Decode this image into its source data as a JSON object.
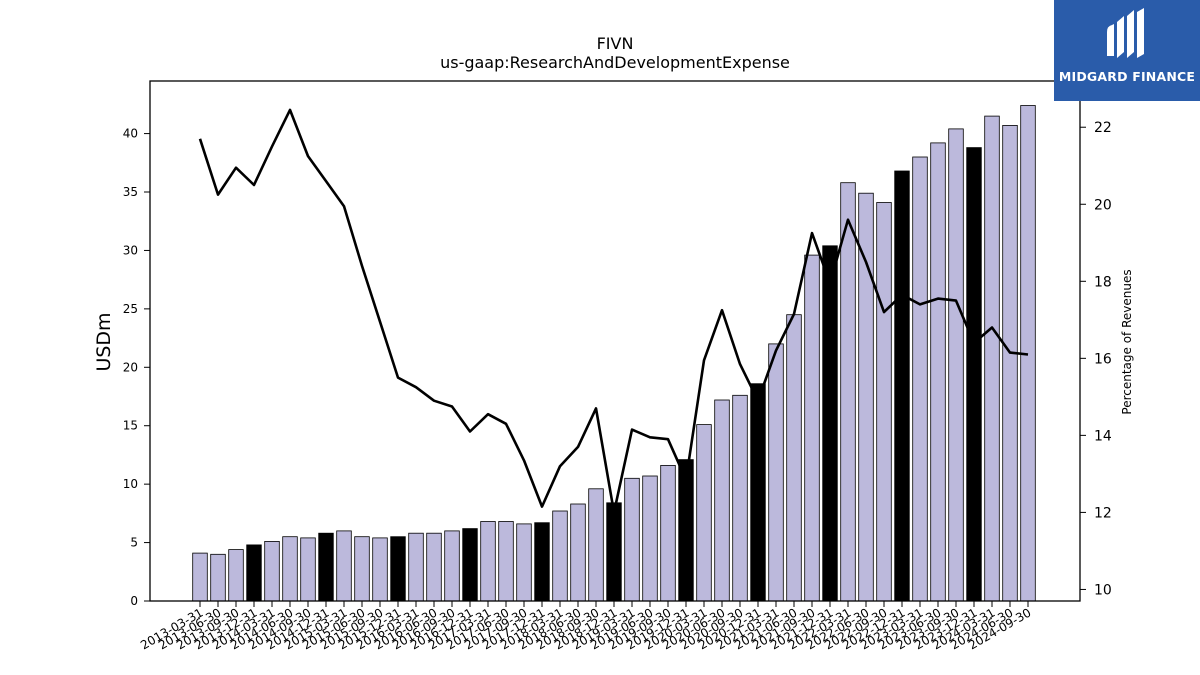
{
  "chart_data": {
    "type": "bar",
    "title": "FIVN",
    "subtitle": "us-gaap:ResearchAndDevelopmentExpense",
    "ylabel": "USDm",
    "y2label": "Percentage of Revenues",
    "ylim": [
      0,
      44.5
    ],
    "y2lim": [
      9.7,
      23.2
    ],
    "yticks": [
      0,
      5,
      10,
      15,
      20,
      25,
      30,
      35,
      40
    ],
    "y2ticks": [
      10,
      12,
      14,
      16,
      18,
      20,
      22
    ],
    "grid": false,
    "categories": [
      "2013-03-31",
      "2013-06-30",
      "2013-09-30",
      "2013-12-31",
      "2014-03-31",
      "2014-06-30",
      "2014-09-30",
      "2014-12-31",
      "2015-03-31",
      "2015-06-30",
      "2015-09-30",
      "2015-12-31",
      "2016-03-31",
      "2016-06-30",
      "2016-09-30",
      "2016-12-31",
      "2017-03-31",
      "2017-06-30",
      "2017-09-30",
      "2017-12-31",
      "2018-03-31",
      "2018-06-30",
      "2018-09-30",
      "2018-12-31",
      "2019-03-31",
      "2019-06-30",
      "2019-09-30",
      "2019-12-31",
      "2020-03-31",
      "2020-06-30",
      "2020-09-30",
      "2020-12-31",
      "2021-03-31",
      "2021-06-30",
      "2021-09-30",
      "2021-12-31",
      "2022-03-31",
      "2022-06-30",
      "2022-09-30",
      "2022-12-31",
      "2023-03-31",
      "2023-06-30",
      "2023-09-30",
      "2023-12-31",
      "2024-03-31",
      "2024-06-30",
      "2024-09-30"
    ],
    "series": [
      {
        "kind": "bar",
        "axis": "left",
        "values": [
          4.1,
          4.0,
          4.4,
          4.8,
          5.1,
          5.5,
          5.4,
          5.8,
          6.0,
          5.5,
          5.4,
          5.5,
          5.8,
          5.8,
          6.0,
          6.2,
          6.8,
          6.8,
          6.6,
          6.7,
          7.7,
          8.3,
          9.6,
          8.4,
          10.5,
          10.7,
          11.6,
          12.1,
          15.1,
          17.2,
          17.6,
          18.6,
          22.0,
          24.5,
          29.6,
          30.4,
          35.8,
          34.9,
          34.1,
          36.8,
          38.0,
          39.2,
          40.4,
          38.8,
          41.5,
          40.7,
          42.4
        ],
        "colors_by_quarter": {
          "q4": "#000000",
          "other": "#bcb9dc"
        }
      },
      {
        "kind": "line",
        "axis": "right",
        "color": "#000000",
        "values": [
          21.7,
          20.25,
          20.95,
          20.5,
          21.5,
          22.45,
          21.25,
          20.6,
          19.95,
          18.4,
          16.95,
          15.5,
          15.25,
          14.9,
          14.75,
          14.1,
          14.55,
          14.3,
          13.35,
          12.15,
          13.2,
          13.7,
          14.7,
          12.0,
          14.15,
          13.95,
          13.9,
          12.85,
          15.95,
          17.25,
          15.85,
          14.9,
          16.2,
          17.15,
          19.25,
          17.95,
          19.6,
          18.5,
          17.2,
          17.65,
          17.4,
          17.55,
          17.5,
          16.4,
          16.8,
          16.15,
          16.1
        ]
      }
    ]
  },
  "logo": {
    "text": "MIDGARD FINANCE",
    "bg": "#2a5caa"
  }
}
